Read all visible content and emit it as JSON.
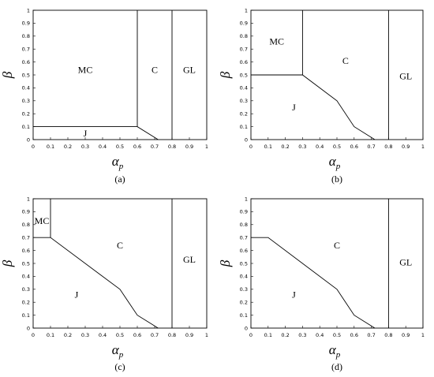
{
  "axis_labels": {
    "y": "β",
    "x_base": "α",
    "x_sub": "p"
  },
  "x_ticks": [
    "0",
    "0.1",
    "0.2",
    "0.3",
    "0.4",
    "0.5",
    "0.6",
    "0.7",
    "0.8",
    "0.9",
    "1"
  ],
  "y_ticks": [
    "0",
    "0.1",
    "0.2",
    "0.3",
    "0.4",
    "0.5",
    "0.6",
    "0.7",
    "0.8",
    "0.9",
    "1"
  ],
  "panels": [
    {
      "id": "a",
      "caption": "(a)",
      "boundaries": [
        [
          [
            0.6,
            1.0
          ],
          [
            0.6,
            0.1
          ]
        ],
        [
          [
            0.0,
            0.1
          ],
          [
            0.6,
            0.1
          ],
          [
            0.72,
            0.0
          ]
        ],
        [
          [
            0.8,
            1.0
          ],
          [
            0.8,
            0.0
          ]
        ]
      ],
      "regions": [
        {
          "label": "MC",
          "at": [
            0.3,
            0.54
          ]
        },
        {
          "label": "C",
          "at": [
            0.7,
            0.54
          ]
        },
        {
          "label": "GL",
          "at": [
            0.9,
            0.54
          ]
        },
        {
          "label": "J",
          "at": [
            0.3,
            0.05
          ]
        }
      ]
    },
    {
      "id": "b",
      "caption": "(b)",
      "boundaries": [
        [
          [
            0.3,
            1.0
          ],
          [
            0.3,
            0.5
          ]
        ],
        [
          [
            0.0,
            0.5
          ],
          [
            0.3,
            0.5
          ],
          [
            0.5,
            0.3
          ],
          [
            0.6,
            0.1
          ],
          [
            0.72,
            0.0
          ]
        ],
        [
          [
            0.8,
            1.0
          ],
          [
            0.8,
            0.0
          ]
        ]
      ],
      "regions": [
        {
          "label": "MC",
          "at": [
            0.15,
            0.76
          ]
        },
        {
          "label": "C",
          "at": [
            0.55,
            0.61
          ]
        },
        {
          "label": "GL",
          "at": [
            0.9,
            0.49
          ]
        },
        {
          "label": "J",
          "at": [
            0.25,
            0.25
          ]
        }
      ]
    },
    {
      "id": "c",
      "caption": "(c)",
      "boundaries": [
        [
          [
            0.1,
            1.0
          ],
          [
            0.1,
            0.7
          ]
        ],
        [
          [
            0.0,
            0.7
          ],
          [
            0.1,
            0.7
          ],
          [
            0.5,
            0.3
          ],
          [
            0.6,
            0.1
          ],
          [
            0.72,
            0.0
          ]
        ],
        [
          [
            0.8,
            1.0
          ],
          [
            0.8,
            0.0
          ]
        ]
      ],
      "regions": [
        {
          "label": "MC",
          "at": [
            0.05,
            0.83
          ]
        },
        {
          "label": "C",
          "at": [
            0.5,
            0.64
          ]
        },
        {
          "label": "GL",
          "at": [
            0.9,
            0.53
          ]
        },
        {
          "label": "J",
          "at": [
            0.25,
            0.26
          ]
        }
      ]
    },
    {
      "id": "d",
      "caption": "(d)",
      "boundaries": [
        [
          [
            0.0,
            0.7
          ],
          [
            0.1,
            0.7
          ],
          [
            0.5,
            0.3
          ],
          [
            0.6,
            0.1
          ],
          [
            0.72,
            0.0
          ]
        ],
        [
          [
            0.8,
            1.0
          ],
          [
            0.8,
            0.0
          ]
        ]
      ],
      "regions": [
        {
          "label": "C",
          "at": [
            0.5,
            0.64
          ]
        },
        {
          "label": "GL",
          "at": [
            0.9,
            0.51
          ]
        },
        {
          "label": "J",
          "at": [
            0.25,
            0.26
          ]
        }
      ]
    }
  ]
}
